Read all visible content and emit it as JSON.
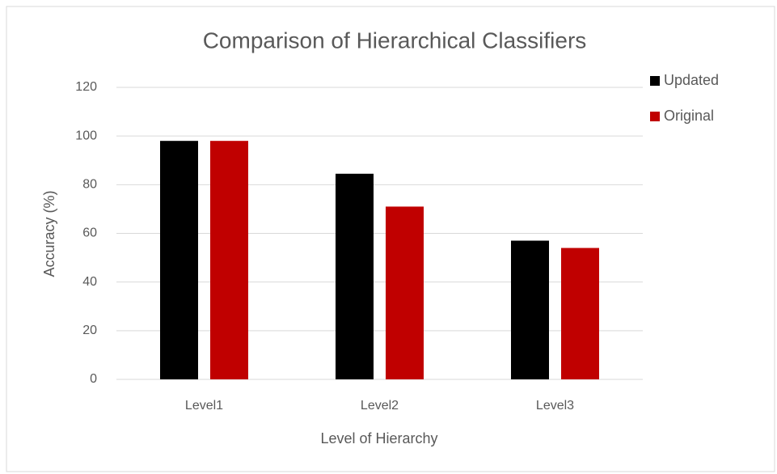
{
  "chart_data": {
    "type": "bar",
    "title": "Comparison of Hierarchical Classifiers",
    "x_label": "Level of Hierarchy",
    "y_label": "Accuracy (%)",
    "categories": [
      "Level1",
      "Level2",
      "Level3"
    ],
    "series": [
      {
        "name": "Updated",
        "color": "#000000",
        "values": [
          98,
          84.5,
          57
        ]
      },
      {
        "name": "Original",
        "color": "#c00000",
        "values": [
          98,
          71,
          54
        ]
      }
    ],
    "ylim": [
      0,
      120
    ],
    "yticks": [
      0,
      20,
      40,
      60,
      80,
      100,
      120
    ],
    "grid": true,
    "legend": "right"
  }
}
